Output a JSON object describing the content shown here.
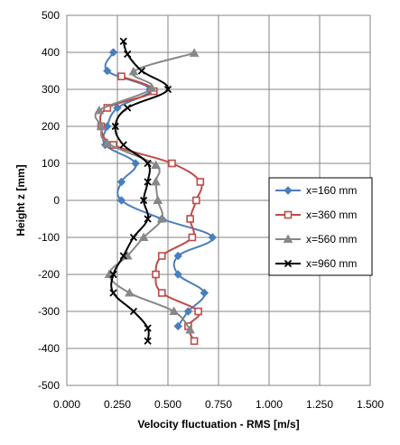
{
  "chart_data": {
    "type": "line",
    "xlabel": "Velocity fluctuation - RMS [m/s]",
    "ylabel": "Height z [mm]",
    "xlim": [
      0,
      1.5
    ],
    "ylim": [
      -500,
      500
    ],
    "xticks": [
      0,
      0.25,
      0.5,
      0.75,
      1.0,
      1.25,
      1.5
    ],
    "xtick_labels": [
      "0.000",
      "0.250",
      "0.500",
      "0.750",
      "1.000",
      "1.250",
      "1.500"
    ],
    "yticks": [
      500,
      400,
      300,
      200,
      100,
      0,
      -100,
      -200,
      -300,
      -400,
      -500
    ],
    "ytick_labels": [
      "500",
      "400",
      "300",
      "200",
      "100",
      "0",
      "-100",
      "-200",
      "-300",
      "-400",
      "-500"
    ],
    "grid": true,
    "legend_position": "right",
    "series": [
      {
        "name": "x=160 mm",
        "color": "#4a7ebb",
        "marker": "diamond",
        "points": [
          [
            0.23,
            400
          ],
          [
            0.2,
            350
          ],
          [
            0.41,
            300
          ],
          [
            0.25,
            250
          ],
          [
            0.2,
            200
          ],
          [
            0.19,
            150
          ],
          [
            0.34,
            100
          ],
          [
            0.27,
            50
          ],
          [
            0.27,
            0
          ],
          [
            0.47,
            -50
          ],
          [
            0.72,
            -100
          ],
          [
            0.55,
            -150
          ],
          [
            0.55,
            -200
          ],
          [
            0.68,
            -250
          ],
          [
            0.6,
            -300
          ],
          [
            0.55,
            -340
          ]
        ]
      },
      {
        "name": "x=360 mm",
        "color": "#be4b48",
        "marker": "square",
        "points": [
          [
            0.27,
            335
          ],
          [
            0.43,
            295
          ],
          [
            0.2,
            250
          ],
          [
            0.17,
            200
          ],
          [
            0.23,
            150
          ],
          [
            0.52,
            100
          ],
          [
            0.66,
            50
          ],
          [
            0.64,
            0
          ],
          [
            0.61,
            -50
          ],
          [
            0.62,
            -100
          ],
          [
            0.47,
            -150
          ],
          [
            0.44,
            -200
          ],
          [
            0.47,
            -250
          ],
          [
            0.65,
            -300
          ],
          [
            0.6,
            -340
          ],
          [
            0.63,
            -380
          ]
        ]
      },
      {
        "name": "x=560 mm",
        "color": "#878787",
        "marker": "triangle",
        "points": [
          [
            0.63,
            398
          ],
          [
            0.33,
            348
          ],
          [
            0.42,
            303
          ],
          [
            0.16,
            243
          ],
          [
            0.17,
            200
          ],
          [
            0.2,
            155
          ],
          [
            0.44,
            95
          ],
          [
            0.44,
            50
          ],
          [
            0.45,
            0
          ],
          [
            0.47,
            -50
          ],
          [
            0.38,
            -100
          ],
          [
            0.3,
            -150
          ],
          [
            0.21,
            -200
          ],
          [
            0.31,
            -250
          ],
          [
            0.53,
            -300
          ],
          [
            0.61,
            -350
          ]
        ]
      },
      {
        "name": "x=960 mm",
        "color": "#000000",
        "marker": "x",
        "points": [
          [
            0.28,
            430
          ],
          [
            0.3,
            395
          ],
          [
            0.37,
            350
          ],
          [
            0.5,
            300
          ],
          [
            0.3,
            250
          ],
          [
            0.24,
            200
          ],
          [
            0.28,
            150
          ],
          [
            0.4,
            100
          ],
          [
            0.4,
            50
          ],
          [
            0.38,
            0
          ],
          [
            0.4,
            -50
          ],
          [
            0.33,
            -100
          ],
          [
            0.28,
            -150
          ],
          [
            0.23,
            -200
          ],
          [
            0.23,
            -250
          ],
          [
            0.33,
            -300
          ],
          [
            0.4,
            -345
          ],
          [
            0.4,
            -380
          ]
        ]
      }
    ]
  }
}
